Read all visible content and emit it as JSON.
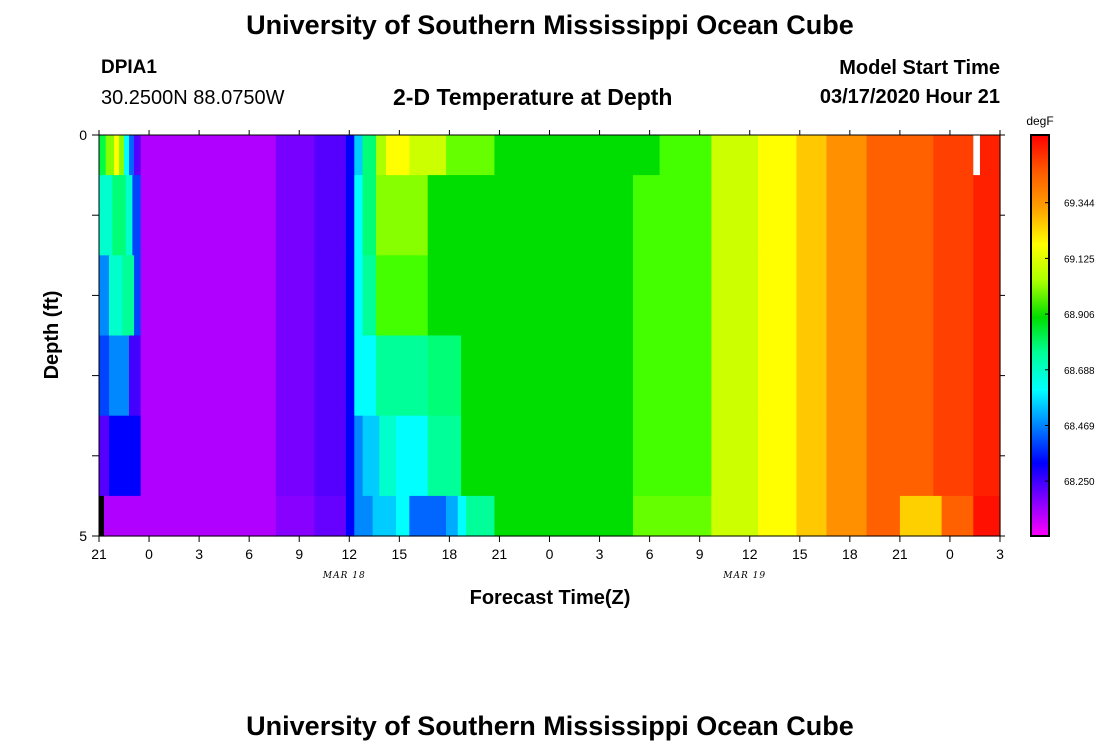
{
  "header": {
    "title": "University of Southern Mississippi Ocean Cube",
    "station_id": "DPIA1",
    "coordinates": "30.2500N 88.0750W",
    "model_start_label": "Model Start Time",
    "model_start_value": "03/17/2020 Hour 21"
  },
  "footer": {
    "title": "University of Southern Mississippi Ocean Cube"
  },
  "chart_data": {
    "type": "heatmap",
    "title": "2-D Temperature at Depth",
    "xlabel": "Forecast Time(Z)",
    "ylabel": "Depth (ft)",
    "ylim": [
      0,
      5
    ],
    "y_tick_labels": [
      "0",
      "5"
    ],
    "x_tick_labels": [
      "21",
      "0",
      "3",
      "6",
      "9",
      "12",
      "15",
      "18",
      "21",
      "0",
      "3",
      "6",
      "9",
      "12",
      "15",
      "18",
      "21",
      "0",
      "3"
    ],
    "date_labels": [
      {
        "label": "MAR 18",
        "after_tick": 4
      },
      {
        "label": "MAR 19",
        "after_tick": 12
      }
    ],
    "colorbar": {
      "unit": "degF",
      "tick_labels": [
        "69.344",
        "69.125",
        "68.906",
        "68.688",
        "68.469",
        "68.250"
      ],
      "colors_top_to_bottom": [
        "#ff0000",
        "#ff5a00",
        "#ffa000",
        "#ffff00",
        "#aaff00",
        "#00dd00",
        "#00ff99",
        "#00ffff",
        "#0080ff",
        "#0000ff",
        "#8000ff",
        "#ff00ff"
      ]
    },
    "depth_rows": [
      {
        "depth_range": [
          0,
          0.5
        ],
        "segments": [
          [
            0,
            0.4,
            "#00ff44"
          ],
          [
            0.4,
            0.9,
            "#88ff00"
          ],
          [
            0.9,
            1.2,
            "#ffff00"
          ],
          [
            1.2,
            1.5,
            "#88ff00"
          ],
          [
            1.5,
            1.8,
            "#00ffff"
          ],
          [
            1.8,
            2.1,
            "#0066ff"
          ],
          [
            2.1,
            2.5,
            "#5500ff"
          ],
          [
            2.5,
            10.6,
            "#b000ff"
          ],
          [
            10.6,
            12.9,
            "#7700ff"
          ],
          [
            12.9,
            14.8,
            "#5500ff"
          ],
          [
            14.8,
            15.3,
            "#0000ff"
          ],
          [
            15.3,
            15.8,
            "#00ccff"
          ],
          [
            15.8,
            16.6,
            "#00ff77"
          ],
          [
            16.6,
            17.2,
            "#aaff00"
          ],
          [
            17.2,
            18.6,
            "#ffff00"
          ],
          [
            18.6,
            20.8,
            "#ccff00"
          ],
          [
            20.8,
            23.7,
            "#66ff00"
          ],
          [
            23.7,
            33.6,
            "#00dd00"
          ],
          [
            33.6,
            36.7,
            "#44ff00"
          ],
          [
            36.7,
            39.5,
            "#ccff00"
          ],
          [
            39.5,
            41.8,
            "#ffff00"
          ],
          [
            41.8,
            43.6,
            "#ffc800"
          ],
          [
            43.6,
            46.0,
            "#ff9000"
          ],
          [
            46.0,
            50.0,
            "#ff6000"
          ],
          [
            50.0,
            52.4,
            "#ff4000"
          ],
          [
            52.4,
            52.8,
            "#ffffff"
          ],
          [
            52.8,
            54,
            "#ff2000"
          ]
        ]
      },
      {
        "depth_range": [
          0.5,
          1.5
        ],
        "segments": [
          [
            0,
            0.8,
            "#00ffcc"
          ],
          [
            0.8,
            1.6,
            "#00ff77"
          ],
          [
            1.6,
            2.0,
            "#00ffcc"
          ],
          [
            2.0,
            2.5,
            "#0044ff"
          ],
          [
            2.5,
            10.6,
            "#b000ff"
          ],
          [
            10.6,
            12.9,
            "#7700ff"
          ],
          [
            12.9,
            14.8,
            "#5500ff"
          ],
          [
            14.8,
            15.3,
            "#0000ff"
          ],
          [
            15.3,
            15.8,
            "#00ffff"
          ],
          [
            15.8,
            16.6,
            "#00ff77"
          ],
          [
            16.6,
            19.7,
            "#88ff00"
          ],
          [
            19.7,
            32.0,
            "#00dd00"
          ],
          [
            32.0,
            36.7,
            "#44ff00"
          ],
          [
            36.7,
            39.5,
            "#ccff00"
          ],
          [
            39.5,
            41.8,
            "#ffff00"
          ],
          [
            41.8,
            43.6,
            "#ffc800"
          ],
          [
            43.6,
            46.0,
            "#ff9000"
          ],
          [
            46.0,
            50.0,
            "#ff6000"
          ],
          [
            50.0,
            52.4,
            "#ff4000"
          ],
          [
            52.4,
            54,
            "#ff2000"
          ]
        ]
      },
      {
        "depth_range": [
          1.5,
          2.5
        ],
        "segments": [
          [
            0,
            0.6,
            "#0088ff"
          ],
          [
            0.6,
            1.4,
            "#00ffcc"
          ],
          [
            1.4,
            2.1,
            "#00ff99"
          ],
          [
            2.1,
            2.5,
            "#0044ff"
          ],
          [
            2.5,
            10.6,
            "#b000ff"
          ],
          [
            10.6,
            12.9,
            "#7700ff"
          ],
          [
            12.9,
            14.8,
            "#5500ff"
          ],
          [
            14.8,
            15.3,
            "#0000ff"
          ],
          [
            15.3,
            15.8,
            "#00ffff"
          ],
          [
            15.8,
            16.6,
            "#00ff99"
          ],
          [
            16.6,
            19.7,
            "#44ff00"
          ],
          [
            19.7,
            32.0,
            "#00dd00"
          ],
          [
            32.0,
            36.7,
            "#44ff00"
          ],
          [
            36.7,
            39.5,
            "#ccff00"
          ],
          [
            39.5,
            41.8,
            "#ffff00"
          ],
          [
            41.8,
            43.6,
            "#ffc800"
          ],
          [
            43.6,
            46.0,
            "#ff9000"
          ],
          [
            46.0,
            50.0,
            "#ff6000"
          ],
          [
            50.0,
            52.4,
            "#ff4000"
          ],
          [
            52.4,
            54,
            "#ff2000"
          ]
        ]
      },
      {
        "depth_range": [
          2.5,
          3.5
        ],
        "segments": [
          [
            0,
            0.6,
            "#0044ff"
          ],
          [
            0.6,
            1.8,
            "#0088ff"
          ],
          [
            1.8,
            2.5,
            "#4400ff"
          ],
          [
            2.5,
            10.6,
            "#b000ff"
          ],
          [
            10.6,
            12.9,
            "#7700ff"
          ],
          [
            12.9,
            14.8,
            "#5500ff"
          ],
          [
            14.8,
            15.3,
            "#0000ff"
          ],
          [
            15.3,
            15.8,
            "#00ffff"
          ],
          [
            15.8,
            16.6,
            "#00ffff"
          ],
          [
            16.6,
            19.7,
            "#00ff99"
          ],
          [
            19.7,
            21.7,
            "#00ff77"
          ],
          [
            21.7,
            32.0,
            "#00dd00"
          ],
          [
            32.0,
            36.7,
            "#44ff00"
          ],
          [
            36.7,
            39.5,
            "#ccff00"
          ],
          [
            39.5,
            41.8,
            "#ffff00"
          ],
          [
            41.8,
            43.6,
            "#ffc800"
          ],
          [
            43.6,
            46.0,
            "#ff9000"
          ],
          [
            46.0,
            50.0,
            "#ff6000"
          ],
          [
            50.0,
            52.4,
            "#ff4000"
          ],
          [
            52.4,
            54,
            "#ff2000"
          ]
        ]
      },
      {
        "depth_range": [
          3.5,
          4.5
        ],
        "segments": [
          [
            0,
            0.6,
            "#5500ff"
          ],
          [
            0.6,
            2.5,
            "#0000ff"
          ],
          [
            2.5,
            10.6,
            "#b000ff"
          ],
          [
            10.6,
            12.9,
            "#7700ff"
          ],
          [
            12.9,
            14.8,
            "#5500ff"
          ],
          [
            14.8,
            15.3,
            "#0000ff"
          ],
          [
            15.3,
            15.8,
            "#0088ff"
          ],
          [
            15.8,
            16.8,
            "#00ccff"
          ],
          [
            16.8,
            17.8,
            "#00ffcc"
          ],
          [
            17.8,
            19.7,
            "#00ffff"
          ],
          [
            19.7,
            21.7,
            "#00ff99"
          ],
          [
            21.7,
            32.0,
            "#00dd00"
          ],
          [
            32.0,
            36.7,
            "#44ff00"
          ],
          [
            36.7,
            39.5,
            "#ccff00"
          ],
          [
            39.5,
            41.8,
            "#ffff00"
          ],
          [
            41.8,
            43.6,
            "#ffc800"
          ],
          [
            43.6,
            46.0,
            "#ff9000"
          ],
          [
            46.0,
            50.0,
            "#ff6000"
          ],
          [
            50.0,
            52.4,
            "#ff4000"
          ],
          [
            52.4,
            54,
            "#ff2000"
          ]
        ]
      },
      {
        "depth_range": [
          4.5,
          5
        ],
        "segments": [
          [
            0,
            0.3,
            "#000000"
          ],
          [
            0.3,
            2.5,
            "#b000ff"
          ],
          [
            2.5,
            10.6,
            "#b000ff"
          ],
          [
            10.6,
            12.9,
            "#8800ff"
          ],
          [
            12.9,
            14.8,
            "#6600ff"
          ],
          [
            14.8,
            15.3,
            "#0000ff"
          ],
          [
            15.3,
            16.4,
            "#0088ff"
          ],
          [
            16.4,
            17.8,
            "#00ccff"
          ],
          [
            17.8,
            18.6,
            "#00ffff"
          ],
          [
            18.6,
            20.8,
            "#0066ff"
          ],
          [
            20.8,
            21.5,
            "#00aaff"
          ],
          [
            21.5,
            22.0,
            "#00ffff"
          ],
          [
            22.0,
            23.7,
            "#00ff99"
          ],
          [
            23.7,
            32.0,
            "#00dd00"
          ],
          [
            32.0,
            36.7,
            "#66ff00"
          ],
          [
            36.7,
            39.5,
            "#ccff00"
          ],
          [
            39.5,
            41.8,
            "#ffff00"
          ],
          [
            41.8,
            43.6,
            "#ffc800"
          ],
          [
            43.6,
            46.0,
            "#ff9000"
          ],
          [
            46.0,
            48.0,
            "#ff6000"
          ],
          [
            48.0,
            50.5,
            "#ffd000"
          ],
          [
            50.5,
            52.4,
            "#ff6000"
          ],
          [
            52.4,
            54,
            "#ff1000"
          ]
        ]
      }
    ]
  }
}
